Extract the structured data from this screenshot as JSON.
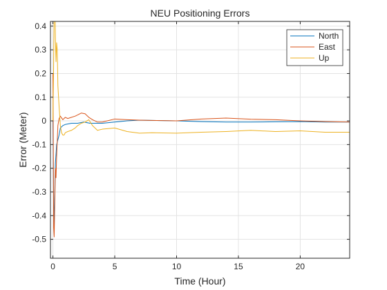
{
  "chart_data": {
    "type": "line",
    "title": "NEU Positioning Errors",
    "xlabel": "Time (Hour)",
    "ylabel": "Error (Meter)",
    "xlim": [
      -0.2,
      24
    ],
    "ylim": [
      -0.58,
      0.42
    ],
    "xticks": [
      0,
      5,
      10,
      15,
      20
    ],
    "yticks": [
      -0.5,
      -0.4,
      -0.3,
      -0.2,
      -0.1,
      0,
      0.1,
      0.2,
      0.3,
      0.4
    ],
    "xtick_labels": [
      "0",
      "5",
      "10",
      "15",
      "20"
    ],
    "ytick_labels": [
      "-0.5",
      "-0.4",
      "-0.3",
      "-0.2",
      "-0.1",
      "0",
      "0.1",
      "0.2",
      "0.3",
      "0.4"
    ],
    "grid": true,
    "legend_position": "top-right",
    "series": [
      {
        "name": "North",
        "color": "#0072BD",
        "x": [
          0,
          0.05,
          0.1,
          0.15,
          0.2,
          0.3,
          0.4,
          0.5,
          0.6,
          0.8,
          1.0,
          1.5,
          2.0,
          2.5,
          3.0,
          4.0,
          5.0,
          6.0,
          7.0,
          8.0,
          10.0,
          12.0,
          14.0,
          16.0,
          18.0,
          20.0,
          22.0,
          24.0
        ],
        "y": [
          0,
          -0.3,
          -0.45,
          -0.3,
          -0.18,
          -0.1,
          -0.08,
          -0.06,
          -0.03,
          -0.02,
          -0.015,
          -0.01,
          -0.01,
          -0.005,
          -0.01,
          -0.01,
          -0.005,
          0,
          0.003,
          0.002,
          0.0,
          -0.003,
          -0.005,
          -0.005,
          -0.004,
          -0.003,
          -0.005,
          -0.005
        ]
      },
      {
        "name": "East",
        "color": "#D95319",
        "x": [
          0,
          0.03,
          0.06,
          0.1,
          0.15,
          0.2,
          0.25,
          0.3,
          0.4,
          0.5,
          0.6,
          0.8,
          1.0,
          1.2,
          1.5,
          1.8,
          2.0,
          2.3,
          2.6,
          2.9,
          3.2,
          3.6,
          4.0,
          5.0,
          6.0,
          7.0,
          8.0,
          10.0,
          12.0,
          14.0,
          16.0,
          18.0,
          20.0,
          22.0,
          24.0
        ],
        "y": [
          0.2,
          -0.1,
          -0.45,
          -0.49,
          -0.35,
          -0.2,
          -0.24,
          -0.15,
          -0.02,
          0.01,
          0.02,
          0.005,
          0.015,
          0.01,
          0.015,
          0.02,
          0.025,
          0.033,
          0.03,
          0.015,
          0.005,
          -0.005,
          -0.005,
          0.008,
          0.005,
          0.003,
          0.002,
          0.0,
          0.008,
          0.012,
          0.007,
          0.005,
          0.0,
          -0.003,
          -0.005
        ]
      },
      {
        "name": "Up",
        "color": "#EDB120",
        "x": [
          0,
          0.05,
          0.1,
          0.15,
          0.2,
          0.25,
          0.3,
          0.35,
          0.4,
          0.5,
          0.6,
          0.7,
          0.8,
          0.9,
          1.0,
          1.2,
          1.5,
          1.8,
          2.0,
          2.3,
          2.6,
          2.9,
          3.2,
          3.6,
          4.0,
          5.0,
          6.0,
          7.0,
          8.0,
          10.0,
          12.0,
          14.0,
          16.0,
          18.0,
          20.0,
          22.0,
          24.0
        ],
        "y": [
          0,
          0.2,
          0.45,
          0.6,
          0.35,
          0.25,
          0.33,
          0.3,
          0.15,
          0.06,
          -0.02,
          -0.05,
          -0.06,
          -0.06,
          -0.05,
          -0.045,
          -0.04,
          -0.03,
          -0.02,
          -0.01,
          -0.005,
          0.005,
          -0.02,
          -0.04,
          -0.035,
          -0.03,
          -0.045,
          -0.052,
          -0.05,
          -0.052,
          -0.048,
          -0.045,
          -0.04,
          -0.045,
          -0.042,
          -0.048,
          -0.048
        ]
      }
    ]
  }
}
